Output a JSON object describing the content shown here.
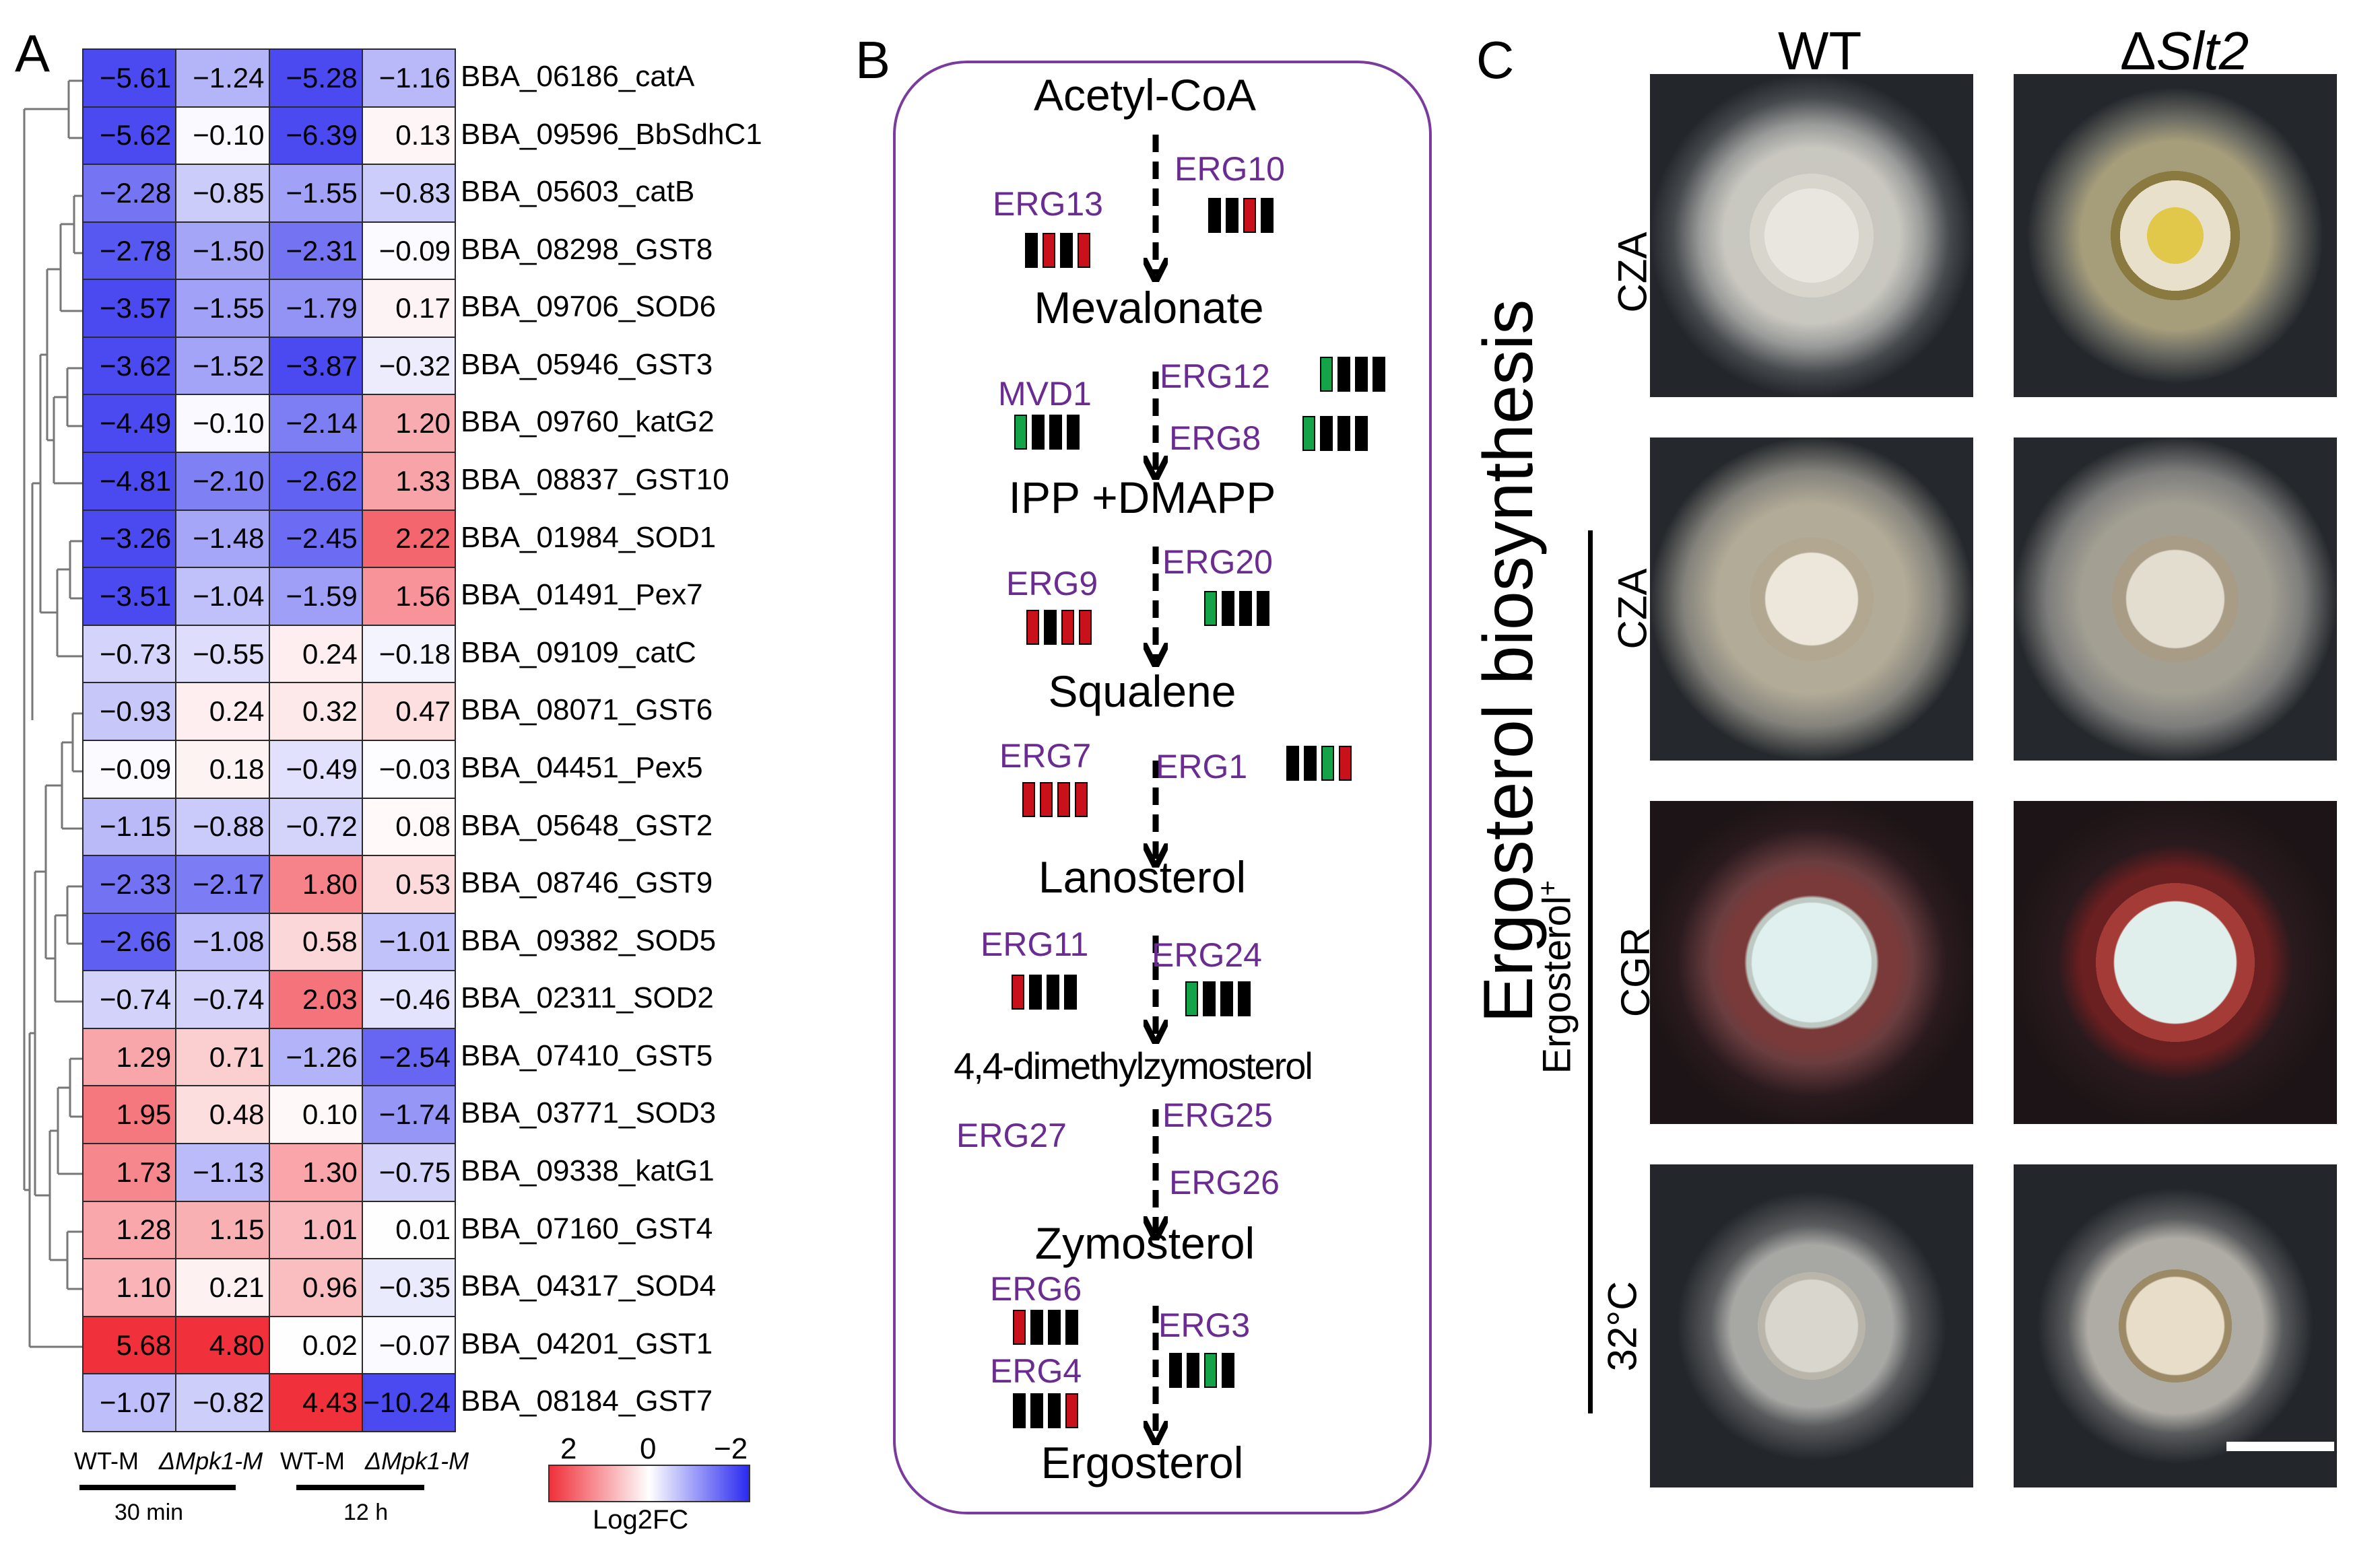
{
  "panels": {
    "a": "A",
    "b": "B",
    "c": "C"
  },
  "heatmap": {
    "genes": [
      "BBA_06186_catA",
      "BBA_09596_BbSdhC1",
      "BBA_05603_catB",
      "BBA_08298_GST8",
      "BBA_09706_SOD6",
      "BBA_05946_GST3",
      "BBA_09760_katG2",
      "BBA_08837_GST10",
      "BBA_01984_SOD1",
      "BBA_01491_Pex7",
      "BBA_09109_catC",
      "BBA_08071_GST6",
      "BBA_04451_Pex5",
      "BBA_05648_GST2",
      "BBA_08746_GST9",
      "BBA_09382_SOD5",
      "BBA_02311_SOD2",
      "BBA_07410_GST5",
      "BBA_03771_SOD3",
      "BBA_09338_katG1",
      "BBA_07160_GST4",
      "BBA_04317_SOD4",
      "BBA_04201_GST1",
      "BBA_08184_GST7"
    ],
    "values": [
      [
        "−5.61",
        "−1.24",
        "−5.28",
        "−1.16"
      ],
      [
        "−5.62",
        "−0.10",
        "−6.39",
        "0.13"
      ],
      [
        "−2.28",
        "−0.85",
        "−1.55",
        "−0.83"
      ],
      [
        "−2.78",
        "−1.50",
        "−2.31",
        "−0.09"
      ],
      [
        "−3.57",
        "−1.55",
        "−1.79",
        "0.17"
      ],
      [
        "−3.62",
        "−1.52",
        "−3.87",
        "−0.32"
      ],
      [
        "−4.49",
        "−0.10",
        "−2.14",
        "1.20"
      ],
      [
        "−4.81",
        "−2.10",
        "−2.62",
        "1.33"
      ],
      [
        "−3.26",
        "−1.48",
        "−2.45",
        "2.22"
      ],
      [
        "−3.51",
        "−1.04",
        "−1.59",
        "1.56"
      ],
      [
        "−0.73",
        "−0.55",
        "0.24",
        "−0.18"
      ],
      [
        "−0.93",
        "0.24",
        "0.32",
        "0.47"
      ],
      [
        "−0.09",
        "0.18",
        "−0.49",
        "−0.03"
      ],
      [
        "−1.15",
        "−0.88",
        "−0.72",
        "0.08"
      ],
      [
        "−2.33",
        "−2.17",
        "1.80",
        "0.53"
      ],
      [
        "−2.66",
        "−1.08",
        "0.58",
        "−1.01"
      ],
      [
        "−0.74",
        "−0.74",
        "2.03",
        "−0.46"
      ],
      [
        "1.29",
        "0.71",
        "−1.26",
        "−2.54"
      ],
      [
        "1.95",
        "0.48",
        "0.10",
        "−1.74"
      ],
      [
        "1.73",
        "−1.13",
        "1.30",
        "−0.75"
      ],
      [
        "1.28",
        "1.15",
        "1.01",
        "0.01"
      ],
      [
        "1.10",
        "0.21",
        "0.96",
        "−0.35"
      ],
      [
        "5.68",
        "4.80",
        "0.02",
        "−0.07"
      ],
      [
        "−1.07",
        "−0.82",
        "4.43",
        "−10.24"
      ]
    ],
    "column_labels": [
      "WT-M",
      "ΔMpk1-M",
      "WT-M",
      "ΔMpk1-M"
    ],
    "time_labels": [
      "30 min",
      "12 h"
    ],
    "legend": {
      "title": "Log2FC",
      "ticks": [
        "2",
        "0",
        "−2"
      ],
      "colors": [
        "#f0303a",
        "#ffffff",
        "#2a2af0"
      ]
    }
  },
  "pathway": {
    "title": "Ergosterol biosynthesis",
    "metabolites": [
      "Acetyl-CoA",
      "Mevalonate",
      "IPP +DMAPP",
      "Squalene",
      "Lanosterol",
      "4,4-dimethylzymosterol",
      "Zymosterol",
      "Ergosterol"
    ],
    "enzymes": [
      {
        "name": "ERG10",
        "bars": [
          "k",
          "k",
          "r",
          "k"
        ]
      },
      {
        "name": "ERG13",
        "bars": [
          "k",
          "r",
          "k",
          "r"
        ]
      },
      {
        "name": "ERG12",
        "bars": [
          "g",
          "k",
          "k",
          "k"
        ]
      },
      {
        "name": "MVD1",
        "bars": [
          "g",
          "k",
          "k",
          "k"
        ]
      },
      {
        "name": "ERG8",
        "bars": [
          "g",
          "k",
          "k",
          "k"
        ]
      },
      {
        "name": "ERG9",
        "bars": [
          "r",
          "k",
          "r",
          "r"
        ]
      },
      {
        "name": "ERG20",
        "bars": [
          "g",
          "k",
          "k",
          "k"
        ]
      },
      {
        "name": "ERG7",
        "bars": [
          "r",
          "r",
          "r",
          "r"
        ]
      },
      {
        "name": "ERG1",
        "bars": [
          "k",
          "k",
          "g",
          "r"
        ]
      },
      {
        "name": "ERG11",
        "bars": [
          "r",
          "k",
          "k",
          "k"
        ]
      },
      {
        "name": "ERG24",
        "bars": [
          "g",
          "k",
          "k",
          "k"
        ]
      },
      {
        "name": "ERG27",
        "bars": []
      },
      {
        "name": "ERG25",
        "bars": []
      },
      {
        "name": "ERG26",
        "bars": []
      },
      {
        "name": "ERG6",
        "bars": [
          "r",
          "k",
          "k",
          "k"
        ]
      },
      {
        "name": "ERG3",
        "bars": [
          "k",
          "k",
          "g",
          "k"
        ]
      },
      {
        "name": "ERG4",
        "bars": [
          "k",
          "k",
          "k",
          "r"
        ]
      }
    ],
    "colors": {
      "k": "#000000",
      "r": "#c8111a",
      "g": "#15a34a",
      "enzyme": "#6a2c91",
      "frame": "#7a3b9e"
    }
  },
  "photos": {
    "columns": [
      "WT",
      "ΔSlt2"
    ],
    "column_delta": "Δ",
    "column_italic": "Slt2",
    "rows": [
      "CZA",
      "CZA",
      "CGR",
      "32°C"
    ],
    "supplement": "Ergosterol",
    "supplement_sup": "+"
  }
}
